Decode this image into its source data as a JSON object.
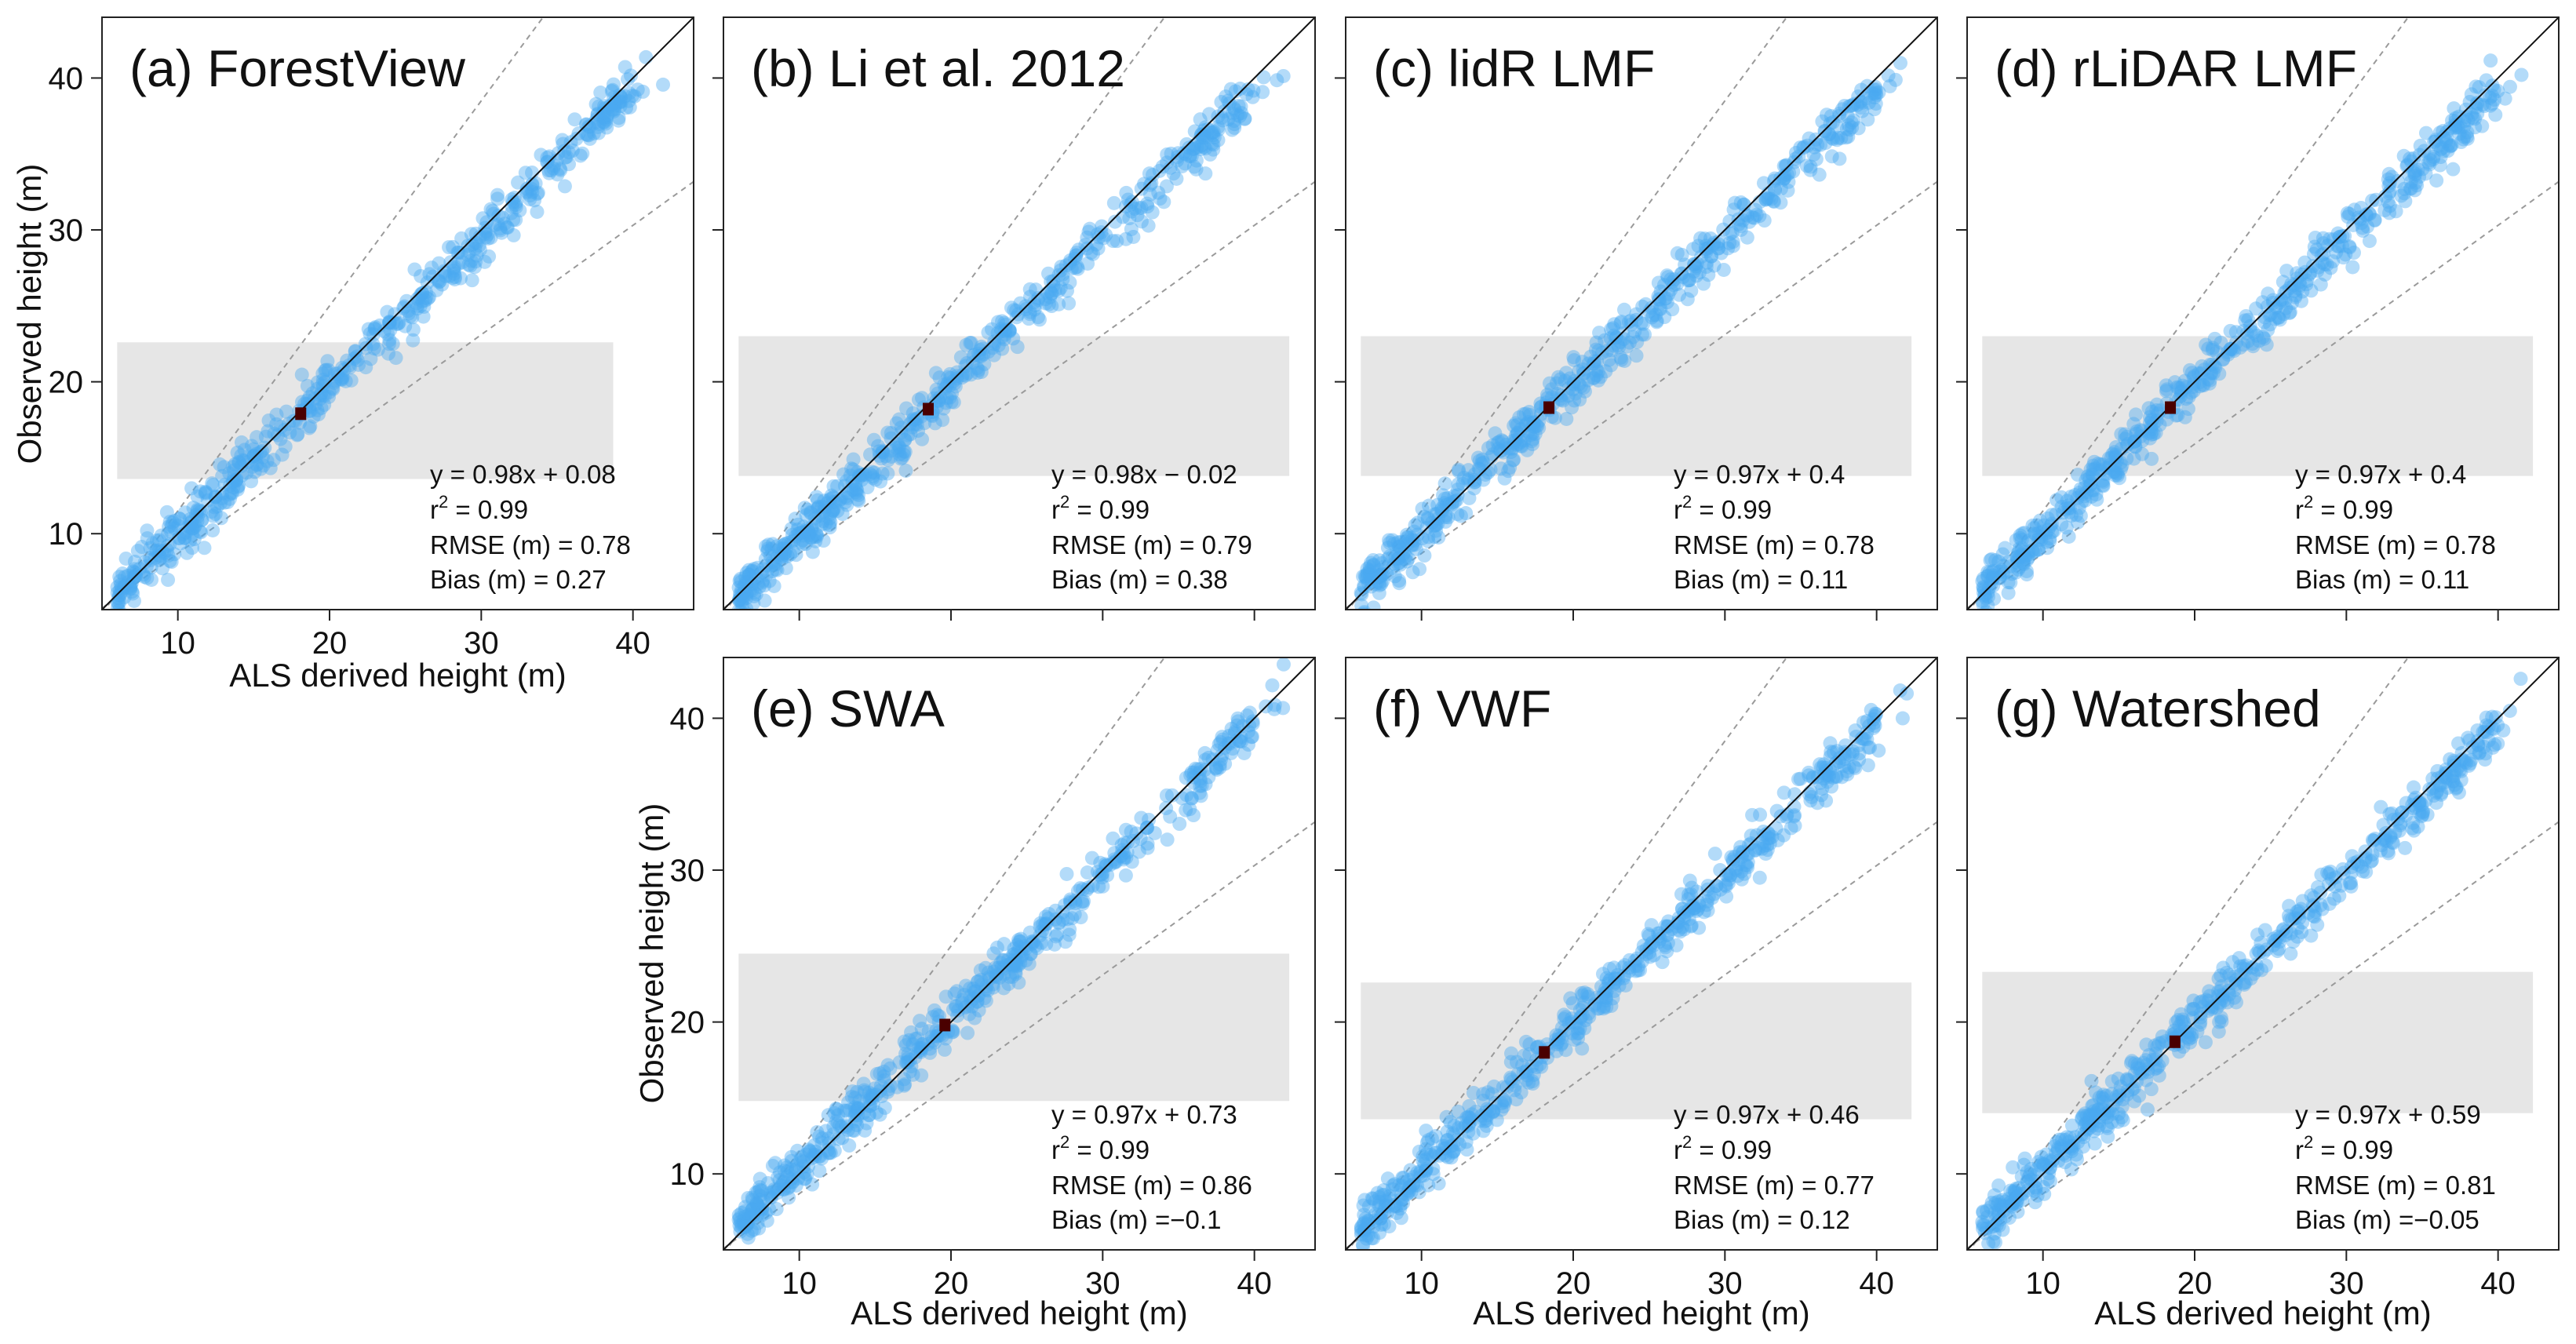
{
  "chart_data": {
    "type": "scatter",
    "x_axis_label": "ALS derived height (m)",
    "y_axis_label": "Observed height (m)",
    "x_ticks": [
      10,
      20,
      30,
      40
    ],
    "y_ticks": [
      10,
      20,
      30,
      40
    ],
    "xlim": [
      5,
      44
    ],
    "ylim": [
      5,
      44
    ],
    "reference_lines": [
      "1:1 line (solid)",
      "dashed dispersion lines"
    ],
    "colors": {
      "points": "#49a9f0",
      "band": "#e6e6e6",
      "mean_marker": "#4a0000",
      "line": "#111111",
      "dashed": "#9a9a9a"
    },
    "panels": [
      {
        "title": "(a) ForestView",
        "slope": 0.98,
        "intercept": 0.08,
        "band": [
          13.6,
          22.6
        ],
        "mean": [
          18.1,
          17.9
        ],
        "eq": "y = 0.98x + 0.08",
        "r2": "0.99",
        "rmse": "RMSE (m) = 0.78",
        "bias": "Bias (m) = 0.27"
      },
      {
        "title": "(b) Li et al. 2012",
        "slope": 0.98,
        "intercept": -0.02,
        "band": [
          13.8,
          23.0
        ],
        "mean": [
          18.5,
          18.2
        ],
        "eq": "y = 0.98x − 0.02",
        "r2": "0.99",
        "rmse": "RMSE (m) = 0.79",
        "bias": "Bias (m) = 0.38"
      },
      {
        "title": "(c) lidR LMF",
        "slope": 0.97,
        "intercept": 0.4,
        "band": [
          13.8,
          23.0
        ],
        "mean": [
          18.4,
          18.3
        ],
        "eq": "y = 0.97x + 0.4",
        "r2": "0.99",
        "rmse": "RMSE (m) = 0.78",
        "bias": "Bias (m) = 0.11"
      },
      {
        "title": "(d) rLiDAR LMF",
        "slope": 0.97,
        "intercept": 0.4,
        "band": [
          13.8,
          23.0
        ],
        "mean": [
          18.4,
          18.3
        ],
        "eq": "y = 0.97x + 0.4",
        "r2": "0.99",
        "rmse": "RMSE (m) = 0.78",
        "bias": "Bias (m) = 0.11"
      },
      {
        "title": "(e) SWA",
        "slope": 0.97,
        "intercept": 0.73,
        "band": [
          14.8,
          24.5
        ],
        "mean": [
          19.6,
          19.8
        ],
        "eq": "y = 0.97x + 0.73",
        "r2": "0.99",
        "rmse": "RMSE (m) = 0.86",
        "bias": "Bias (m) =−0.1"
      },
      {
        "title": "(f) VWF",
        "slope": 0.97,
        "intercept": 0.46,
        "band": [
          13.6,
          22.6
        ],
        "mean": [
          18.1,
          18.0
        ],
        "eq": "y = 0.97x + 0.46",
        "r2": "0.99",
        "rmse": "RMSE (m) = 0.77",
        "bias": "Bias (m) = 0.12"
      },
      {
        "title": "(g) Watershed",
        "slope": 0.97,
        "intercept": 0.59,
        "band": [
          14.0,
          23.3
        ],
        "mean": [
          18.7,
          18.7
        ],
        "eq": "y = 0.97x + 0.59",
        "r2": "0.99",
        "rmse": "RMSE (m) = 0.81",
        "bias": "Bias (m) =−0.05"
      }
    ]
  }
}
